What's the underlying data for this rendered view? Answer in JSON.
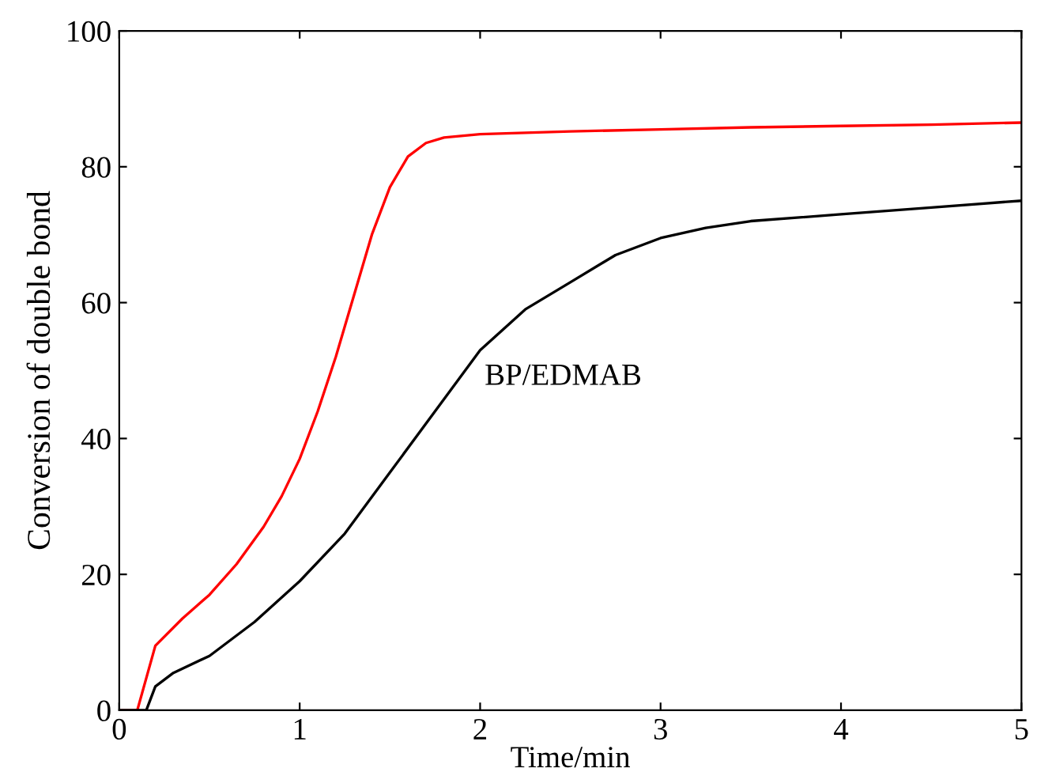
{
  "chart_data": {
    "type": "line",
    "xlabel": "Time/min",
    "ylabel": "Conversion of double bond",
    "xlim": [
      0,
      5
    ],
    "ylim": [
      0,
      100
    ],
    "xticks": [
      0,
      1,
      2,
      3,
      4,
      5
    ],
    "yticks": [
      0,
      20,
      40,
      60,
      80,
      100
    ],
    "grid": false,
    "legend": false,
    "series": [
      {
        "color": "#ff0000",
        "x": [
          0,
          0.1,
          0.2,
          0.35,
          0.5,
          0.65,
          0.8,
          0.9,
          1.0,
          1.1,
          1.2,
          1.3,
          1.4,
          1.5,
          1.6,
          1.7,
          1.8,
          2.0,
          2.25,
          2.5,
          3.0,
          3.5,
          4.0,
          4.5,
          5.0
        ],
        "values": [
          0,
          0,
          9.5,
          13.5,
          17,
          21.5,
          27,
          31.5,
          37,
          44,
          52,
          61,
          70,
          77,
          81.5,
          83.5,
          84.3,
          84.8,
          85,
          85.2,
          85.5,
          85.8,
          86,
          86.2,
          86.5
        ]
      },
      {
        "color": "#000000",
        "x": [
          0,
          0.15,
          0.2,
          0.3,
          0.5,
          0.75,
          1.0,
          1.25,
          1.5,
          1.75,
          2.0,
          2.25,
          2.5,
          2.75,
          3.0,
          3.25,
          3.5,
          4.0,
          4.5,
          5.0
        ],
        "values": [
          0,
          0,
          3.5,
          5.5,
          8,
          13,
          19,
          26,
          35,
          44,
          53,
          59,
          63,
          67,
          69.5,
          71,
          72,
          73,
          74,
          75
        ]
      }
    ],
    "annotations": [
      "BP/EDMAB"
    ]
  }
}
